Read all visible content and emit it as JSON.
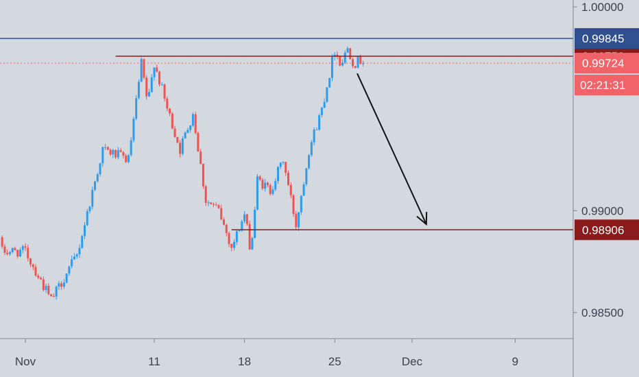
{
  "chart_data": {
    "type": "candlestick",
    "y_axis": {
      "range": [
        0.9838,
        1.0005
      ],
      "ticks": [
        "1.00000",
        "0.99000",
        "0.98500"
      ],
      "position": "right"
    },
    "x_axis": {
      "ticks": [
        "Nov",
        "11",
        "18",
        "25",
        "Dec",
        "9"
      ]
    },
    "levels": [
      {
        "name": "resistance",
        "value": 0.99758,
        "label": "0.99758",
        "color": "#8b1a1a",
        "style": "solid",
        "x_from": "Nov 8"
      },
      {
        "name": "current",
        "value": 0.99724,
        "label": "0.99724",
        "color": "#f06368",
        "style": "dotted"
      },
      {
        "name": "high",
        "value": 0.99845,
        "label": "0.99845",
        "color": "#2f4f8f",
        "style": "solid"
      },
      {
        "name": "support",
        "value": 0.98906,
        "label": "0.98906",
        "color": "#8b1a1a",
        "style": "solid",
        "x_from": "Nov 17"
      }
    ],
    "countdown": {
      "label": "02:21:31",
      "color": "#f06368"
    },
    "arrow": {
      "from": {
        "date": "Nov 26",
        "value": 0.997
      },
      "to": {
        "date": "Dec 2",
        "value": 0.9892
      }
    },
    "colors": {
      "up": "#2d9cf0",
      "down": "#ef5350",
      "background": "#d4d9e0"
    },
    "anchors": [
      {
        "date": "Nov 1",
        "value": 0.988
      },
      {
        "date": "Nov 3",
        "value": 0.9856
      },
      {
        "date": "Nov 5",
        "value": 0.9878
      },
      {
        "date": "Nov 7",
        "value": 0.993
      },
      {
        "date": "Nov 9",
        "value": 0.9925
      },
      {
        "date": "Nov 10",
        "value": 0.9972
      },
      {
        "date": "Nov 10.5",
        "value": 0.9952
      },
      {
        "date": "Nov 11",
        "value": 0.9973
      },
      {
        "date": "Nov 12",
        "value": 0.995
      },
      {
        "date": "Nov 13",
        "value": 0.993
      },
      {
        "date": "Nov 14",
        "value": 0.9948
      },
      {
        "date": "Nov 15",
        "value": 0.9905
      },
      {
        "date": "Nov 16",
        "value": 0.99
      },
      {
        "date": "Nov 17",
        "value": 0.9882
      },
      {
        "date": "Nov 18",
        "value": 0.9898
      },
      {
        "date": "Nov 18.5",
        "value": 0.988
      },
      {
        "date": "Nov 19",
        "value": 0.9915
      },
      {
        "date": "Nov 20",
        "value": 0.991
      },
      {
        "date": "Nov 21",
        "value": 0.9925
      },
      {
        "date": "Nov 22",
        "value": 0.9893
      },
      {
        "date": "Nov 23",
        "value": 0.993
      },
      {
        "date": "Nov 24",
        "value": 0.995
      },
      {
        "date": "Nov 25",
        "value": 0.9979
      },
      {
        "date": "Nov 25.5",
        "value": 0.9972
      },
      {
        "date": "Nov 26",
        "value": 0.998
      },
      {
        "date": "Nov 26.5",
        "value": 0.9972
      },
      {
        "date": "Nov 27",
        "value": 0.9974
      }
    ]
  }
}
